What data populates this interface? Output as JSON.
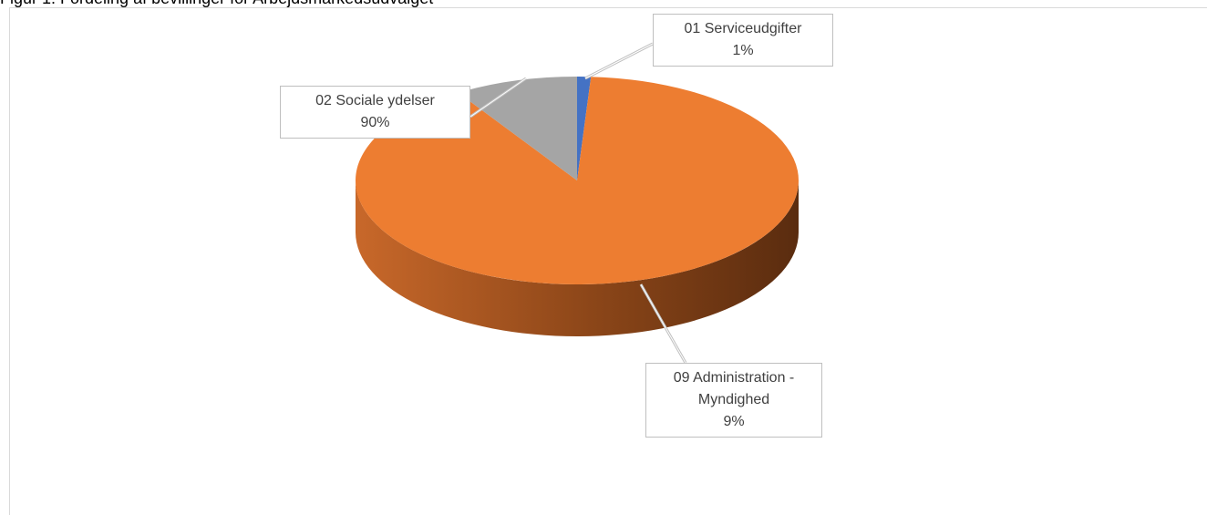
{
  "chart_data": {
    "type": "pie",
    "title": "Figur 1. Fordeling af bevillinger for Arbejdsmarkedsudvalget",
    "categories": [
      "01 Serviceudgifter",
      "02 Sociale ydelser",
      "09 Administration - Myndighed"
    ],
    "values": [
      1,
      90,
      9
    ],
    "value_labels": [
      "1%",
      "90%",
      "9%"
    ],
    "colors": [
      "#4472c4",
      "#ed7d31",
      "#a5a5a5"
    ]
  }
}
